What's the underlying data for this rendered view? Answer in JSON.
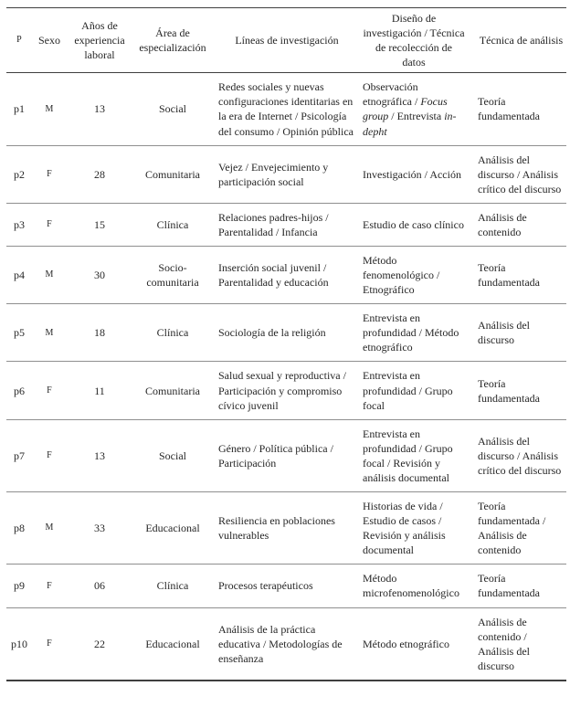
{
  "table": {
    "columns": [
      "P",
      "Sexo",
      "Años de experiencia laboral",
      "Área de especialización",
      "Líneas de investigación",
      "Diseño de investigación / Técnica de recolección de datos",
      "Técnica de análisis"
    ],
    "rows": [
      {
        "p": "p1",
        "sexo": "M",
        "experiencia": "13",
        "area": "Social",
        "lineas": "Redes sociales y nuevas configuraciones identitarias en la era de Internet / Psicología del consumo / Opinión pública",
        "diseno": [
          {
            "t": "Observación etnográfica / "
          },
          {
            "t": "Focus group",
            "i": true
          },
          {
            "t": " / Entrevista "
          },
          {
            "t": "in-depht",
            "i": true
          }
        ],
        "tecnica": "Teoría fundamentada"
      },
      {
        "p": "p2",
        "sexo": "F",
        "experiencia": "28",
        "area": "Comunitaria",
        "lineas": "Vejez / Envejecimiento y participación social",
        "diseno": "Investigación / Acción",
        "tecnica": "Análisis del discurso / Análisis crítico del discurso"
      },
      {
        "p": "p3",
        "sexo": "F",
        "experiencia": "15",
        "area": "Clínica",
        "lineas": "Relaciones padres-hijos / Parentalidad / Infancia",
        "diseno": "Estudio de caso clínico",
        "tecnica": "Análisis de contenido"
      },
      {
        "p": "p4",
        "sexo": "M",
        "experiencia": "30",
        "area": "Socio-comunitaria",
        "lineas": "Inserción social juvenil / Parentalidad y educación",
        "diseno": "Método fenomenológico / Etnográfico",
        "tecnica": "Teoría fundamentada"
      },
      {
        "p": "p5",
        "sexo": "M",
        "experiencia": "18",
        "area": "Clínica",
        "lineas": "Sociología de la religión",
        "diseno": "Entrevista en profundidad / Método etnográfico",
        "tecnica": "Análisis del discurso"
      },
      {
        "p": "p6",
        "sexo": "F",
        "experiencia": "11",
        "area": "Comunitaria",
        "lineas": "Salud sexual y reproductiva / Participación y compromiso cívico juvenil",
        "diseno": "Entrevista en profundidad / Grupo focal",
        "tecnica": "Teoría fundamentada"
      },
      {
        "p": "p7",
        "sexo": "F",
        "experiencia": "13",
        "area": "Social",
        "lineas": "Género / Política pública / Participación",
        "diseno": "Entrevista en profundidad / Grupo focal / Revisión y análisis documental",
        "tecnica": "Análisis del discurso / Análisis crítico del discurso"
      },
      {
        "p": "p8",
        "sexo": "M",
        "experiencia": "33",
        "area": "Educacional",
        "lineas": "Resiliencia en poblaciones vulnerables",
        "diseno": "Historias de vida / Estudio de casos / Revisión y análisis documental",
        "tecnica": "Teoría fundamentada / Análisis de contenido"
      },
      {
        "p": "p9",
        "sexo": "F",
        "experiencia": "06",
        "area": "Clínica",
        "lineas": "Procesos terapéuticos",
        "diseno": "Método microfenomenológico",
        "tecnica": "Teoría fundamentada"
      },
      {
        "p": "p10",
        "sexo": "F",
        "experiencia": "22",
        "area": "Educacional",
        "lineas": "Análisis de la práctica educativa / Metodologías de enseñanza",
        "diseno": "Método etnográfico",
        "tecnica": "Análisis de contenido / Análisis del discurso"
      }
    ]
  }
}
